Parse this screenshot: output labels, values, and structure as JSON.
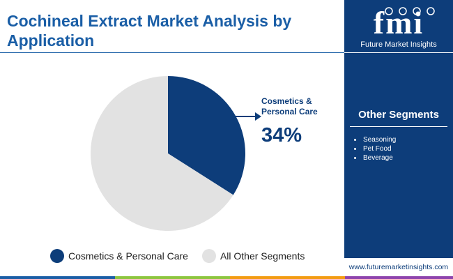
{
  "title": "Cochineal Extract Market Analysis by Application",
  "brand": {
    "logo_text": "fmi",
    "name": "Future Market Insights",
    "website": "www.futuremarketinsights.com"
  },
  "callout": {
    "label": "Cosmetics & Personal Care",
    "value_text": "34%"
  },
  "sidebar": {
    "title": "Other Segments",
    "items": [
      "Seasoning",
      "Pet Food",
      "Beverage"
    ]
  },
  "colors": {
    "primary": "#0d3d7a",
    "other": "#e2e2e2",
    "title": "#1a5ea6",
    "bar": [
      "#1a5ea6",
      "#8dc63f",
      "#f39c12",
      "#8e44ad"
    ]
  },
  "chart_data": {
    "type": "pie",
    "slices": [
      {
        "label": "Cosmetics & Personal Care",
        "value": 34,
        "color": "#0d3d7a"
      },
      {
        "label": "All Other Segments",
        "value": 66,
        "color": "#e2e2e2"
      }
    ],
    "start": "top",
    "direction": "clockwise",
    "legend_position": "bottom"
  }
}
